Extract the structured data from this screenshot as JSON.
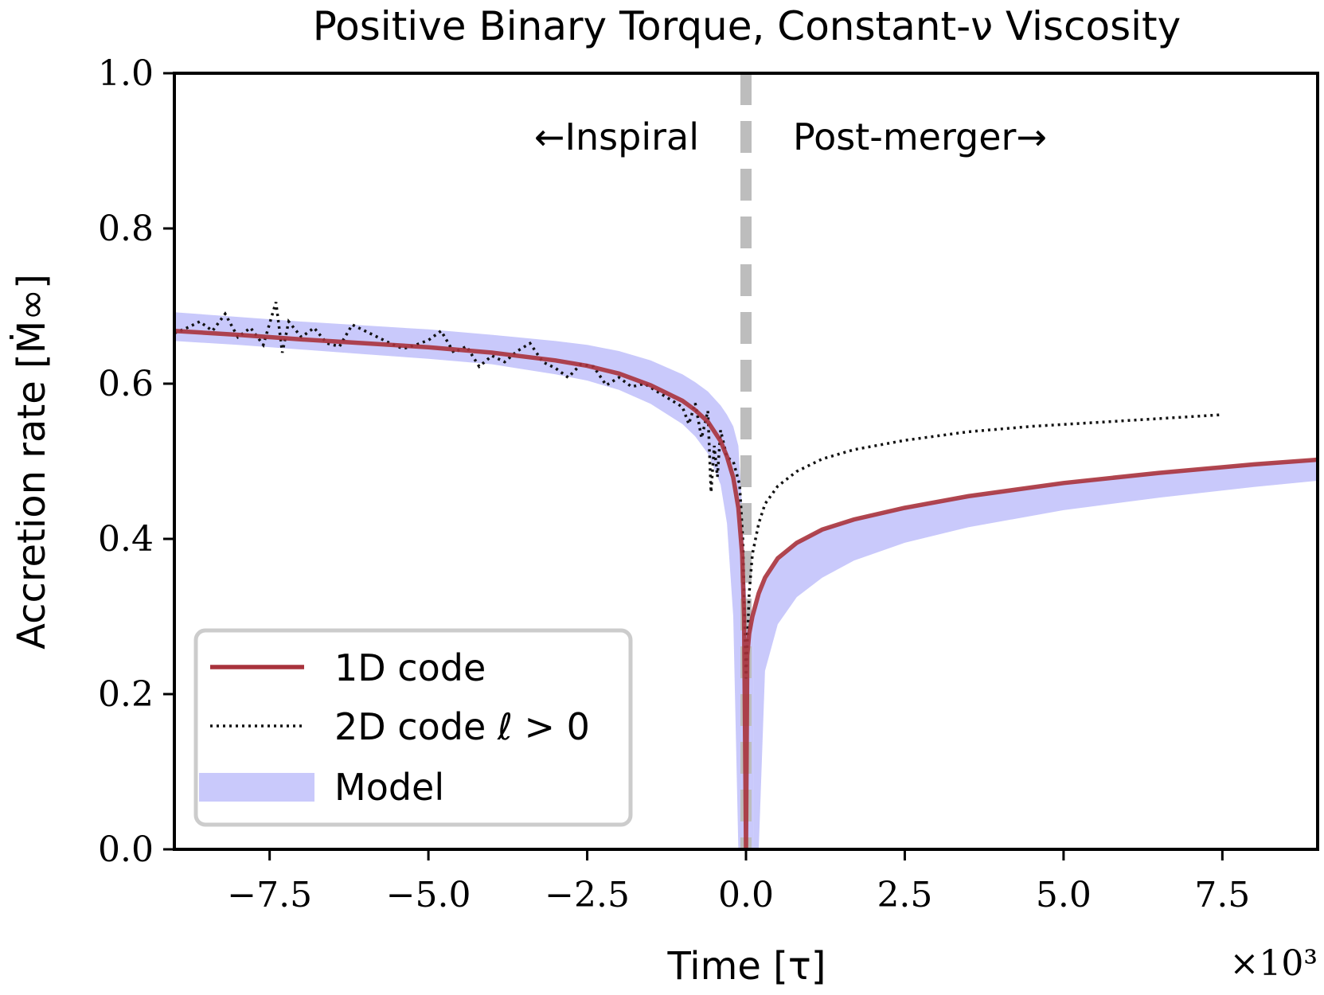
{
  "chart_data": {
    "type": "line",
    "title": "Positive Binary Torque, Constant-ν Viscosity",
    "xlabel": "Time [τ]",
    "ylabel": "Accretion rate [Ṁ∞]",
    "x_multiplier_label": "×10³",
    "xlim": [
      -9.0,
      9.0
    ],
    "ylim": [
      0.0,
      1.0
    ],
    "x_ticks": [
      -7.5,
      -5.0,
      -2.5,
      0.0,
      2.5,
      5.0,
      7.5
    ],
    "x_tick_labels": [
      "−7.5",
      "−5.0",
      "−2.5",
      "0.0",
      "2.5",
      "5.0",
      "7.5"
    ],
    "y_ticks": [
      0.0,
      0.2,
      0.4,
      0.6,
      0.8,
      1.0
    ],
    "y_tick_labels": [
      "0.0",
      "0.2",
      "0.4",
      "0.6",
      "0.8",
      "1.0"
    ],
    "grid": false,
    "legend_position": "lower-left",
    "annotations": {
      "inspiral": "←Inspiral",
      "post_merger": "Post-merger→",
      "merger_line_x": 0.0
    },
    "series": [
      {
        "name": "1D code",
        "style": "solid",
        "color": "#a8323c",
        "x": [
          -9.0,
          -8.0,
          -7.0,
          -6.0,
          -5.0,
          -4.0,
          -3.0,
          -2.5,
          -2.0,
          -1.5,
          -1.0,
          -0.8,
          -0.6,
          -0.4,
          -0.3,
          -0.2,
          -0.12,
          -0.06,
          -0.03,
          0.0,
          0.02,
          0.05,
          0.1,
          0.2,
          0.3,
          0.5,
          0.8,
          1.2,
          1.7,
          2.5,
          3.5,
          5.0,
          6.5,
          8.0,
          9.0
        ],
        "y": [
          0.668,
          0.663,
          0.657,
          0.652,
          0.647,
          0.64,
          0.63,
          0.623,
          0.613,
          0.598,
          0.578,
          0.566,
          0.551,
          0.526,
          0.506,
          0.479,
          0.44,
          0.38,
          0.3,
          0.0,
          0.25,
          0.278,
          0.3,
          0.33,
          0.35,
          0.375,
          0.395,
          0.412,
          0.425,
          0.44,
          0.455,
          0.472,
          0.485,
          0.496,
          0.502
        ]
      },
      {
        "name": "2D code ℓ > 0",
        "style": "dotted",
        "color": "#111111",
        "x": [
          -9.0,
          -8.8,
          -8.6,
          -8.4,
          -8.2,
          -8.0,
          -7.8,
          -7.6,
          -7.4,
          -7.3,
          -7.2,
          -7.0,
          -6.8,
          -6.6,
          -6.4,
          -6.2,
          -6.0,
          -5.8,
          -5.6,
          -5.4,
          -5.2,
          -5.0,
          -4.8,
          -4.6,
          -4.4,
          -4.2,
          -4.0,
          -3.8,
          -3.6,
          -3.4,
          -3.2,
          -3.0,
          -2.8,
          -2.6,
          -2.4,
          -2.2,
          -2.0,
          -1.8,
          -1.6,
          -1.4,
          -1.2,
          -1.0,
          -0.9,
          -0.8,
          -0.7,
          -0.6,
          -0.55,
          -0.5,
          -0.45,
          -0.4,
          -0.3,
          -0.2,
          -0.1,
          -0.05,
          0.0,
          0.05,
          0.1,
          0.2,
          0.3,
          0.5,
          0.8,
          1.2,
          1.7,
          2.5,
          3.5,
          4.5,
          5.5,
          6.5,
          7.5
        ],
        "y": [
          0.665,
          0.672,
          0.68,
          0.668,
          0.69,
          0.66,
          0.672,
          0.65,
          0.705,
          0.64,
          0.68,
          0.66,
          0.672,
          0.652,
          0.648,
          0.676,
          0.668,
          0.66,
          0.652,
          0.645,
          0.65,
          0.656,
          0.668,
          0.64,
          0.648,
          0.622,
          0.636,
          0.628,
          0.642,
          0.652,
          0.628,
          0.62,
          0.608,
          0.625,
          0.622,
          0.598,
          0.608,
          0.596,
          0.6,
          0.59,
          0.58,
          0.57,
          0.548,
          0.575,
          0.53,
          0.565,
          0.46,
          0.52,
          0.48,
          0.54,
          0.505,
          0.5,
          0.47,
          0.4,
          0.22,
          0.33,
          0.38,
          0.42,
          0.445,
          0.468,
          0.487,
          0.503,
          0.515,
          0.527,
          0.538,
          0.545,
          0.55,
          0.555,
          0.56
        ]
      },
      {
        "name": "Model",
        "style": "band",
        "color": "#c9c9fb",
        "x": [
          -9.0,
          -8.0,
          -7.0,
          -6.0,
          -5.0,
          -4.0,
          -3.0,
          -2.5,
          -2.0,
          -1.5,
          -1.0,
          -0.8,
          -0.6,
          -0.4,
          -0.3,
          -0.2,
          -0.12,
          -0.06,
          0.0,
          0.06,
          0.12,
          0.2,
          0.3,
          0.5,
          0.8,
          1.2,
          1.7,
          2.5,
          3.5,
          5.0,
          6.5,
          8.0,
          9.0
        ],
        "y_low": [
          0.655,
          0.65,
          0.644,
          0.638,
          0.632,
          0.625,
          0.612,
          0.604,
          0.592,
          0.574,
          0.548,
          0.532,
          0.51,
          0.47,
          0.42,
          0.3,
          0.0,
          0.0,
          0.0,
          0.0,
          0.0,
          0.0,
          0.23,
          0.29,
          0.325,
          0.35,
          0.372,
          0.395,
          0.415,
          0.437,
          0.453,
          0.467,
          0.475
        ],
        "y_high": [
          0.692,
          0.686,
          0.68,
          0.675,
          0.67,
          0.663,
          0.655,
          0.65,
          0.642,
          0.63,
          0.612,
          0.602,
          0.59,
          0.572,
          0.56,
          0.545,
          0.52,
          0.44,
          0.33,
          0.28,
          0.3,
          0.325,
          0.345,
          0.372,
          0.395,
          0.412,
          0.425,
          0.44,
          0.455,
          0.472,
          0.485,
          0.496,
          0.502
        ]
      }
    ]
  }
}
